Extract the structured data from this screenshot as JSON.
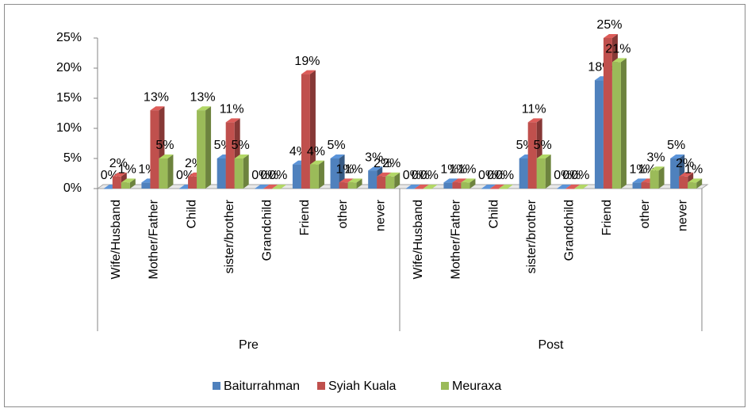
{
  "chart_data": {
    "type": "bar3d",
    "categories": [
      "Wife/Husband",
      "Mother/Father",
      "Child",
      "sister/brother",
      "Grandchild",
      "Friend",
      "other",
      "never",
      "Wife/Husband",
      "Mother/Father",
      "Child",
      "sister/brother",
      "Grandchild",
      "Friend",
      "other",
      "never"
    ],
    "groups": [
      "Pre",
      "Post"
    ],
    "series": [
      {
        "name": "Baiturrahman",
        "color": "#4f81bd",
        "values": [
          0,
          1,
          0,
          5,
          0,
          4,
          5,
          3,
          0,
          1,
          0,
          5,
          0,
          18,
          1,
          5
        ],
        "value_labels": [
          "0%",
          "1%",
          "0%",
          "5%",
          "0%",
          "4%",
          "5%",
          "3%",
          "0%",
          "1%",
          "0%",
          "5%",
          "0%",
          "18%",
          "1%",
          "5%"
        ]
      },
      {
        "name": "Syiah Kuala",
        "color": "#c0504d",
        "values": [
          2,
          13,
          2,
          11,
          0,
          19,
          1,
          2,
          0,
          1,
          0,
          11,
          0,
          25,
          1,
          2
        ],
        "value_labels": [
          "2%",
          "13%",
          "2%",
          "11%",
          "0%",
          "19%",
          "1%",
          "2%",
          "0%",
          "1%",
          "0%",
          "11%",
          "0%",
          "25%",
          "1%",
          "2%"
        ]
      },
      {
        "name": "Meuraxa",
        "color": "#9bbb59",
        "values": [
          1,
          5,
          13,
          5,
          0,
          4,
          1,
          2,
          0,
          1,
          0,
          5,
          0,
          21,
          3,
          1
        ],
        "value_labels": [
          "1%",
          "5%",
          "13%",
          "5%",
          "0%",
          "4%",
          "1%",
          "2%",
          "0%",
          "1%",
          "0%",
          "5%",
          "0%",
          "21%",
          "3%",
          "1%"
        ]
      }
    ],
    "ylim": [
      0,
      25
    ],
    "yticks": [
      {
        "value": 0,
        "label": "0%"
      },
      {
        "value": 5,
        "label": "5%"
      },
      {
        "value": 10,
        "label": "10%"
      },
      {
        "value": 15,
        "label": "15%"
      },
      {
        "value": 20,
        "label": "20%"
      },
      {
        "value": 25,
        "label": "25%"
      }
    ],
    "legend": "bottom"
  }
}
